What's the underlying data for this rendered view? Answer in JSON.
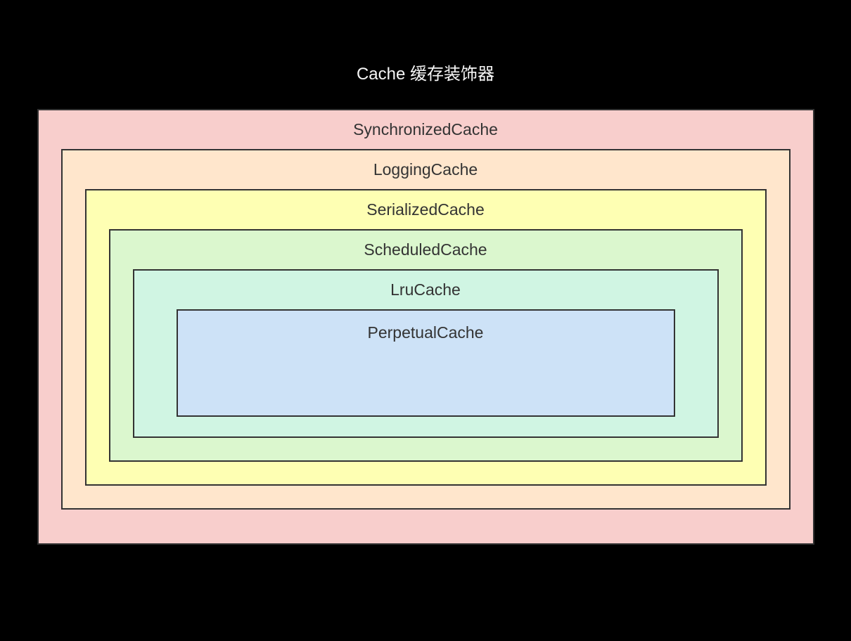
{
  "diagram": {
    "title": "Cache 缓存装饰器",
    "title_color": "#f5f5f5",
    "title_fontsize": 24,
    "background_color": "#000000",
    "label_fontsize": 23,
    "label_color": "#333333",
    "border_width": 2,
    "layers": [
      {
        "label": "SynchronizedCache",
        "fill": "#f8cecc",
        "border": "#333333"
      },
      {
        "label": "LoggingCache",
        "fill": "#ffe6cc",
        "border": "#333333"
      },
      {
        "label": "SerializedCache",
        "fill": "#feffb3",
        "border": "#333333"
      },
      {
        "label": "ScheduledCache",
        "fill": "#dbf7ce",
        "border": "#333333"
      },
      {
        "label": "LruCache",
        "fill": "#d0f5e3",
        "border": "#333333"
      },
      {
        "label": "PerpetualCache",
        "fill": "#cde2f7",
        "border": "#333333"
      }
    ]
  }
}
